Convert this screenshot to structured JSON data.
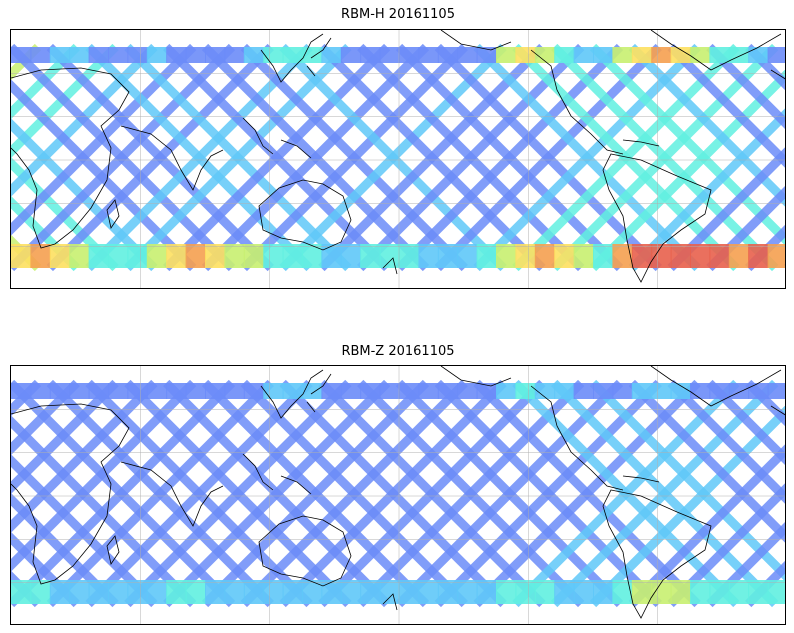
{
  "panels": [
    {
      "title": "RBM-H 20161105",
      "swath_rows": [
        [
          1,
          1,
          2,
          2,
          1,
          1,
          1,
          2,
          1,
          1,
          1,
          1,
          2,
          3,
          3,
          3,
          2,
          1,
          1,
          1,
          1,
          1,
          1,
          1,
          1,
          4,
          5,
          4,
          3,
          2,
          2,
          4,
          5,
          6,
          5,
          4,
          3,
          3,
          2,
          1
        ],
        [
          5,
          6,
          5,
          4,
          3,
          3,
          3,
          4,
          5,
          6,
          5,
          4,
          4,
          3,
          3,
          3,
          2,
          2,
          3,
          3,
          3,
          2,
          2,
          2,
          3,
          4,
          5,
          6,
          5,
          4,
          3,
          6,
          7,
          7,
          7,
          7,
          7,
          6,
          7,
          6
        ]
      ],
      "south_band_colors": [
        "#c0504d",
        "#e8604c",
        "#f5a050",
        "#fde060",
        "#c8f070",
        "#60e8f0"
      ],
      "north_band_colors": [
        "#fde060",
        "#f5a050",
        "#e8604c"
      ]
    },
    {
      "title": "RBM-Z 20161105",
      "swath_rows": [
        [
          1,
          1,
          1,
          1,
          1,
          1,
          1,
          1,
          1,
          1,
          1,
          1,
          1,
          2,
          2,
          2,
          1,
          1,
          1,
          1,
          1,
          1,
          1,
          1,
          1,
          2,
          3,
          2,
          2,
          1,
          1,
          1,
          2,
          2,
          2,
          1,
          1,
          1,
          1,
          1
        ],
        [
          3,
          3,
          2,
          2,
          2,
          2,
          2,
          2,
          3,
          3,
          2,
          2,
          2,
          2,
          2,
          2,
          2,
          2,
          2,
          2,
          2,
          2,
          2,
          2,
          2,
          3,
          3,
          3,
          2,
          2,
          2,
          3,
          4,
          4,
          4,
          3,
          3,
          3,
          3,
          3
        ]
      ],
      "south_band_colors": [
        "#5fe0f0",
        "#c8f070",
        "#fde060"
      ],
      "north_band_colors": [
        "#5fe0f0",
        "#6ab0f8"
      ]
    }
  ],
  "colormap": [
    "#6464f0",
    "#6b8cf8",
    "#5fc8f8",
    "#60f0e0",
    "#c8f070",
    "#fde060",
    "#f5a050",
    "#e8604c"
  ]
}
